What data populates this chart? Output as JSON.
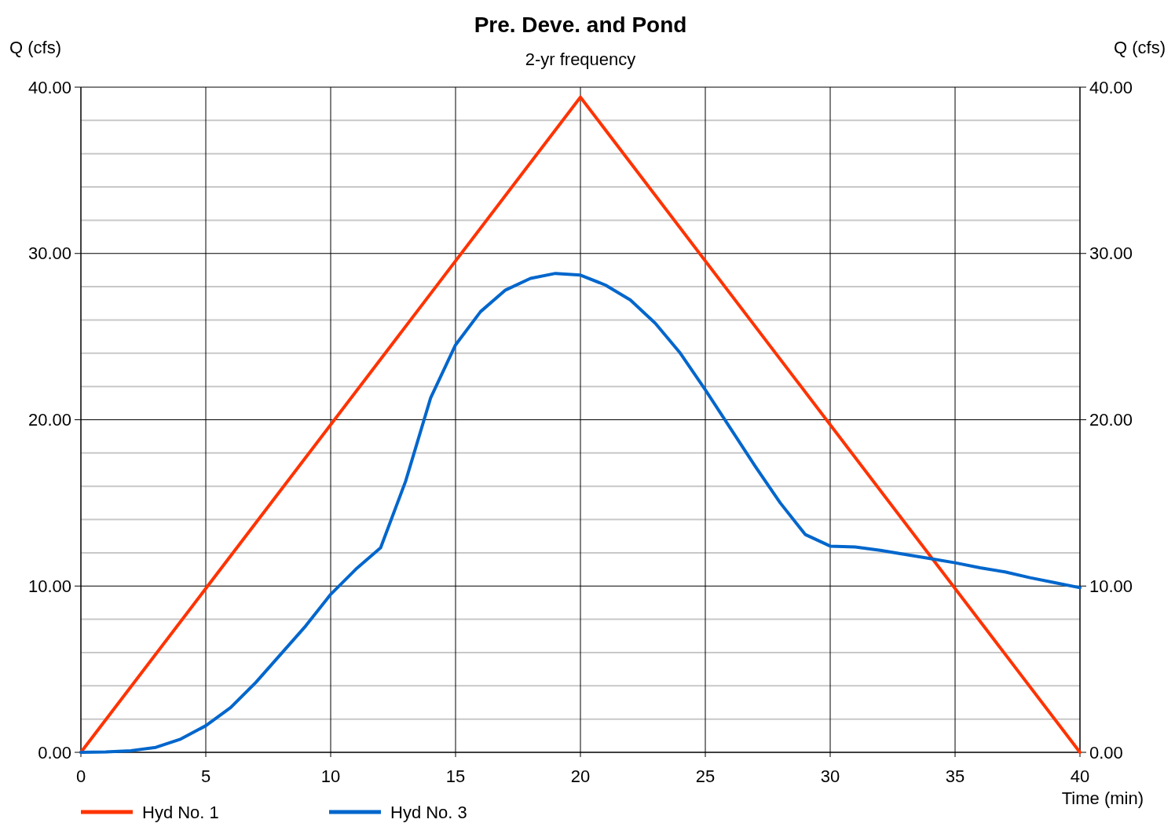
{
  "chart_data": {
    "type": "line",
    "title": "Pre. Deve. and Pond",
    "subtitle": "2-yr frequency",
    "xlabel": "Time (min)",
    "ylabel": "Q (cfs)",
    "y2label": "Q (cfs)",
    "x": [
      0,
      1,
      2,
      3,
      4,
      5,
      6,
      7,
      8,
      9,
      10,
      11,
      12,
      13,
      14,
      15,
      16,
      17,
      18,
      19,
      20,
      21,
      22,
      23,
      24,
      25,
      26,
      27,
      28,
      29,
      30,
      31,
      32,
      33,
      34,
      35,
      36,
      37,
      38,
      39,
      40
    ],
    "series": [
      {
        "name": "Hyd No. 1",
        "color": "#ff3300",
        "x": [
          0,
          20,
          40
        ],
        "values": [
          0,
          39.4,
          0
        ]
      },
      {
        "name": "Hyd No. 3",
        "color": "#0066cc",
        "values": [
          0,
          0.02,
          0.1,
          0.3,
          0.8,
          1.6,
          2.7,
          4.2,
          5.9,
          7.6,
          9.5,
          11.0,
          12.3,
          16.3,
          21.3,
          24.5,
          26.5,
          27.8,
          28.5,
          28.8,
          28.7,
          28.1,
          27.2,
          25.8,
          24.0,
          21.8,
          19.5,
          17.2,
          15.0,
          13.1,
          12.4,
          12.35,
          12.15,
          11.9,
          11.65,
          11.4,
          11.1,
          10.85,
          10.5,
          10.2,
          9.9
        ]
      }
    ],
    "xlim": [
      0,
      40
    ],
    "xticks": [
      0,
      5,
      10,
      15,
      20,
      25,
      30,
      35,
      40
    ],
    "ylim": [
      0,
      40
    ],
    "yticks": [
      {
        "value": 0,
        "label": "0.00"
      },
      {
        "value": 2,
        "label": null
      },
      {
        "value": 4,
        "label": null
      },
      {
        "value": 6,
        "label": null
      },
      {
        "value": 8,
        "label": null
      },
      {
        "value": 10,
        "label": "10.00"
      },
      {
        "value": 12,
        "label": null
      },
      {
        "value": 14,
        "label": null
      },
      {
        "value": 16,
        "label": null
      },
      {
        "value": 18,
        "label": null
      },
      {
        "value": 20,
        "label": "20.00"
      },
      {
        "value": 22,
        "label": null
      },
      {
        "value": 24,
        "label": null
      },
      {
        "value": 26,
        "label": null
      },
      {
        "value": 28,
        "label": null
      },
      {
        "value": 30,
        "label": "30.00"
      },
      {
        "value": 32,
        "label": null
      },
      {
        "value": 34,
        "label": null
      },
      {
        "value": 36,
        "label": null
      },
      {
        "value": 38,
        "label": null
      },
      {
        "value": 40,
        "label": "40.00"
      }
    ],
    "y2lim": [
      0,
      40
    ],
    "y2ticks": [
      {
        "value": 0,
        "label": "0.00"
      },
      {
        "value": 10,
        "label": "10.00"
      },
      {
        "value": 20,
        "label": "20.00"
      },
      {
        "value": 30,
        "label": "30.00"
      },
      {
        "value": 40,
        "label": "40.00"
      }
    ],
    "grid": true,
    "legend": "bottom left",
    "marker": "none",
    "line_style": "solid"
  }
}
